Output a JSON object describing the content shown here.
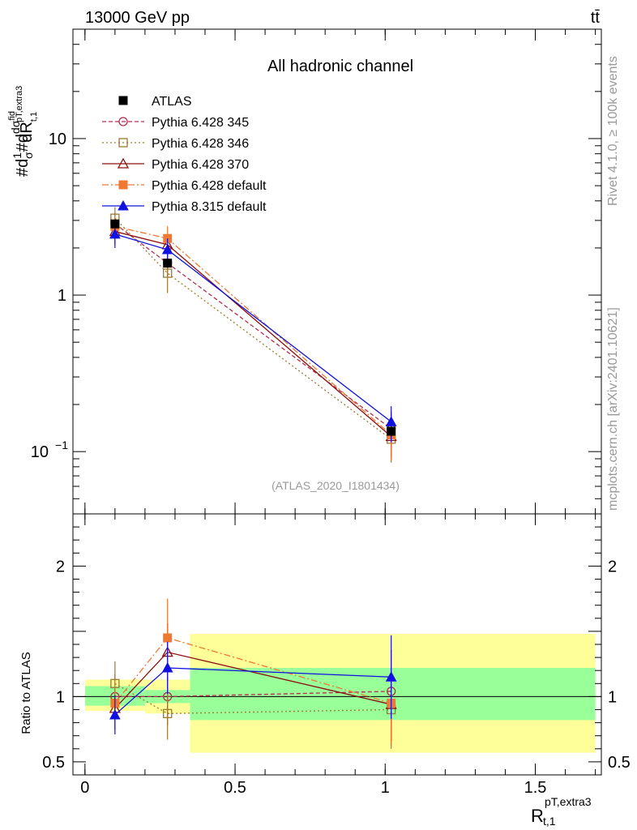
{
  "chart_data": {
    "type": "scatter",
    "header": {
      "left": "13000 GeV pp",
      "right": "tt̄"
    },
    "title": "All hadronic channel",
    "watermark": "(ATLAS_2020_I1801434)",
    "side_labels": {
      "rivet": "Rivet 4.1.0, ≥ 100k events",
      "site": "mcplots.cern.ch [arXiv:2401.10621]"
    },
    "ylabel_top": "#d¹/σ#d dσ^fid_{pT,extra3} / dR_{t,1}",
    "ylabel_bottom": "Ratio to ATLAS",
    "xlabel": "R_{t,1}^{pT,extra3}",
    "xlim": [
      -0.04,
      1.72
    ],
    "ylim_top": [
      0.04,
      50
    ],
    "ylim_bottom": [
      0.4,
      2.4
    ],
    "x_ticks": [
      "0",
      "0.5",
      "1",
      "1.5"
    ],
    "x_tick_values": [
      0,
      0.5,
      1,
      1.5
    ],
    "y_ticks_top": [
      {
        "v": 10,
        "label": "10"
      },
      {
        "v": 1,
        "label": "1"
      }
    ],
    "y_ticks_top_sup": {
      "v": 0.1,
      "base": "10",
      "exp": "−1"
    },
    "y_ticks_bottom": [
      {
        "v": 2,
        "label": "2"
      },
      {
        "v": 1,
        "label": "1"
      },
      {
        "v": 0.5,
        "label": "0.5"
      }
    ],
    "bins": [
      [
        0,
        0.2
      ],
      [
        0.2,
        0.35
      ],
      [
        0.35,
        1.7
      ]
    ],
    "band_green": [
      [
        0.93,
        1.08
      ],
      [
        0.95,
        1.05
      ],
      [
        0.82,
        1.22
      ]
    ],
    "band_yellow": [
      [
        0.89,
        1.13
      ],
      [
        0.87,
        1.13
      ],
      [
        0.57,
        1.48
      ]
    ],
    "series": [
      {
        "name": "ATLAS",
        "color": "#000000",
        "marker": "square-filled",
        "dash": "none",
        "is_data": true,
        "x": [
          0.1,
          0.275,
          1.02
        ],
        "y": [
          2.85,
          1.6,
          0.135
        ],
        "yerr": [
          0.15,
          0.08,
          0.01
        ],
        "ratio": [
          1.0,
          1.0,
          1.0
        ],
        "ratio_err": [
          0.0,
          0.0,
          0.0
        ]
      },
      {
        "name": "Pythia 6.428 345",
        "color": "#b03050",
        "marker": "circle-open",
        "dash": "5,3",
        "x": [
          0.1,
          0.275,
          1.02
        ],
        "y": [
          2.85,
          1.6,
          0.14
        ],
        "yerr": [
          0.5,
          0.3,
          0.04
        ],
        "ratio": [
          1.0,
          1.0,
          1.04
        ],
        "ratio_err": [
          0.17,
          0.22,
          0.32
        ]
      },
      {
        "name": "Pythia 6.428 346",
        "color": "#9c7a30",
        "marker": "square-open",
        "dash": "2,3",
        "x": [
          0.1,
          0.275,
          1.02
        ],
        "y": [
          3.1,
          1.38,
          0.12
        ],
        "yerr": [
          0.55,
          0.35,
          0.035
        ],
        "ratio": [
          1.1,
          0.87,
          0.9
        ],
        "ratio_err": [
          0.17,
          0.2,
          0.3
        ]
      },
      {
        "name": "Pythia 6.428 370",
        "color": "#8b1010",
        "marker": "triangle-open",
        "dash": "none",
        "x": [
          0.1,
          0.275,
          1.02
        ],
        "y": [
          2.55,
          2.1,
          0.125
        ],
        "yerr": [
          0.45,
          0.35,
          0.035
        ],
        "ratio": [
          0.91,
          1.34,
          0.94
        ],
        "ratio_err": [
          0.16,
          0.22,
          0.28
        ]
      },
      {
        "name": "Pythia 6.428 default",
        "color": "#f07830",
        "marker": "square-filled",
        "dash": "8,3,2,3",
        "x": [
          0.1,
          0.275,
          1.02
        ],
        "y": [
          2.75,
          2.3,
          0.128
        ],
        "yerr": [
          0.45,
          0.45,
          0.04
        ],
        "ratio": [
          0.95,
          1.45,
          0.95
        ],
        "ratio_err": [
          0.17,
          0.3,
          0.3
        ]
      },
      {
        "name": "Pythia 8.315 default",
        "color": "#1010e0",
        "marker": "triangle-filled",
        "dash": "none",
        "x": [
          0.1,
          0.275,
          1.02
        ],
        "y": [
          2.45,
          1.95,
          0.155
        ],
        "yerr": [
          0.45,
          0.35,
          0.04
        ],
        "ratio": [
          0.86,
          1.22,
          1.15
        ],
        "ratio_err": [
          0.15,
          0.2,
          0.32
        ]
      }
    ]
  }
}
